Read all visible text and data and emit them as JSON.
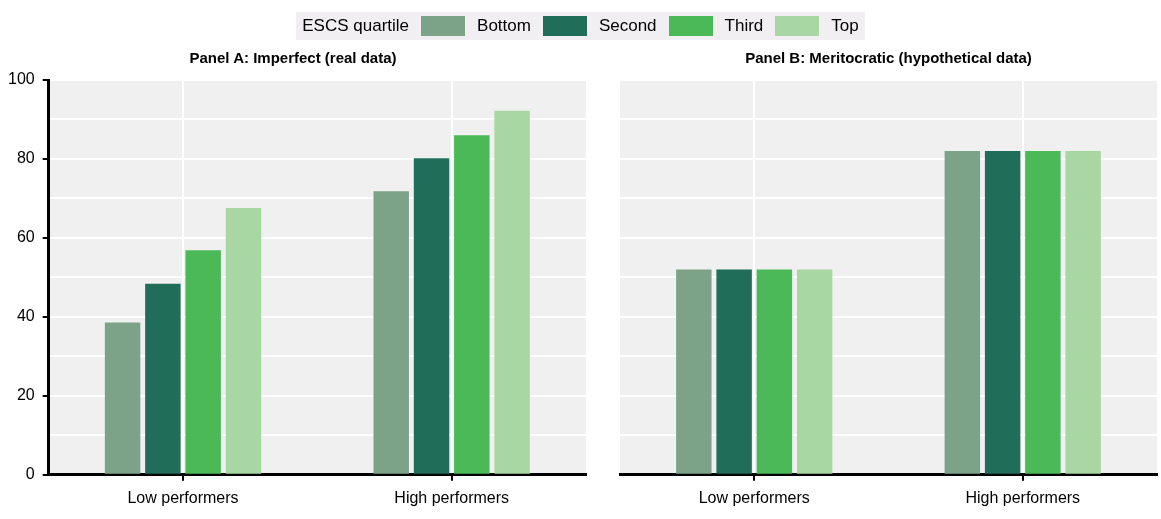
{
  "chart_data": [
    {
      "type": "bar",
      "title": "Panel A: Imperfect (real data)",
      "categories": [
        "Low performers",
        "High performers"
      ],
      "legend": "top",
      "legend_title": "ESCS quartile",
      "grid": true,
      "ylim": [
        0,
        100
      ],
      "yticks": [
        0,
        {
          "value": 10,
          "label": null
        },
        20,
        {
          "value": 30,
          "label": null
        },
        40,
        {
          "value": 50,
          "label": null
        },
        60,
        {
          "value": 70,
          "label": null
        },
        80,
        {
          "value": 90,
          "label": null
        },
        100
      ],
      "series": [
        {
          "name": "Bottom",
          "color": "#7ca388",
          "values": [
            38.6,
            71.8
          ]
        },
        {
          "name": "Second",
          "color": "#206e5a",
          "values": [
            48.4,
            80.2
          ]
        },
        {
          "name": "Third",
          "color": "#4bb957",
          "values": [
            56.9,
            86.0
          ]
        },
        {
          "name": "Top",
          "color": "#a9d7a3",
          "values": [
            67.6,
            92.2
          ]
        }
      ]
    },
    {
      "type": "bar",
      "title": "Panel B: Meritocratic (hypothetical data)",
      "categories": [
        "Low performers",
        "High performers"
      ],
      "grid": true,
      "tick_labels": "x",
      "ylim": [
        0,
        100
      ],
      "yticks": [
        0,
        {
          "value": 10,
          "label": null
        },
        20,
        {
          "value": 30,
          "label": null
        },
        40,
        {
          "value": 50,
          "label": null
        },
        60,
        {
          "value": 70,
          "label": null
        },
        80,
        {
          "value": 90,
          "label": null
        },
        100
      ],
      "series": [
        {
          "color": "#7ca388",
          "values": [
            52,
            82
          ]
        },
        {
          "color": "#206e5a",
          "values": [
            52,
            82
          ]
        },
        {
          "color": "#4bb957",
          "values": [
            52,
            82
          ]
        },
        {
          "color": "#a9d7a3",
          "values": [
            52,
            82
          ]
        }
      ]
    }
  ]
}
